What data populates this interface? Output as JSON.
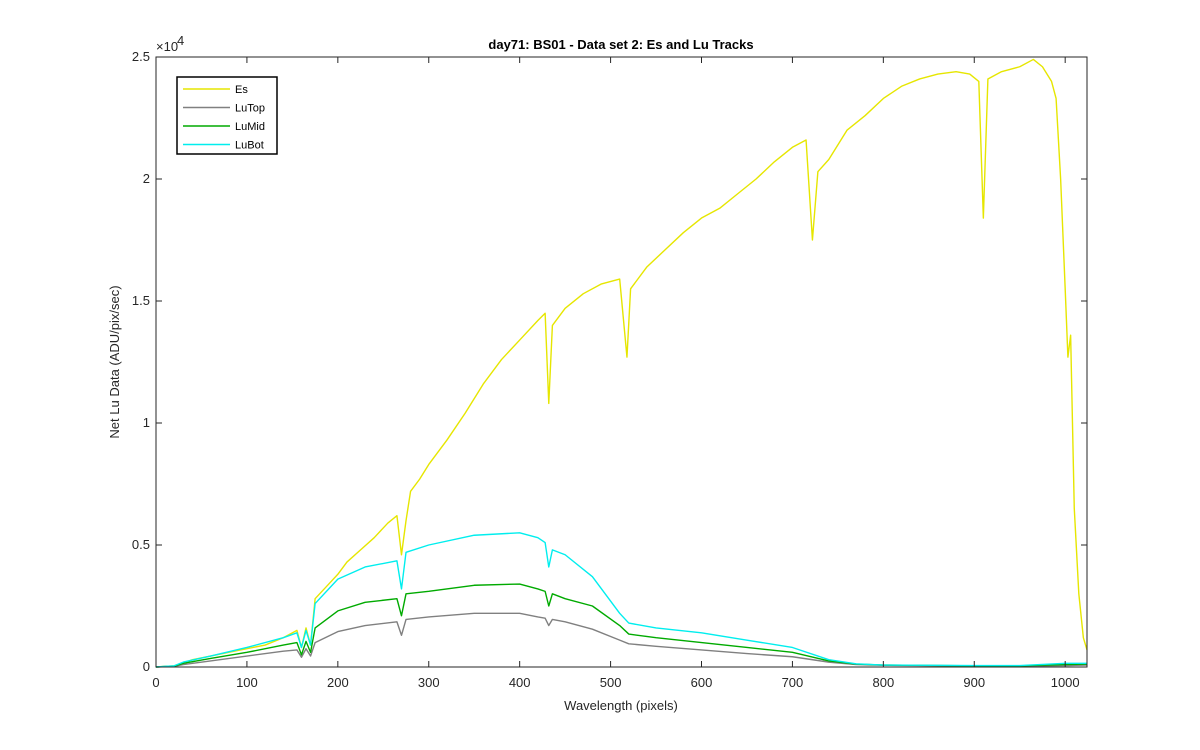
{
  "chart_data": {
    "type": "line",
    "title": "day71: BS01 - Data set 2: Es and Lu Tracks",
    "xlabel": "Wavelength (pixels)",
    "ylabel": "Net Lu Data (ADU/pix/sec)",
    "xlim": [
      0,
      1024
    ],
    "ylim": [
      0,
      25000
    ],
    "y_exponent_label": "×10",
    "y_exponent_power": "4",
    "x_ticks": [
      0,
      100,
      200,
      300,
      400,
      500,
      600,
      700,
      800,
      900,
      1000
    ],
    "x_tick_labels": [
      "0",
      "100",
      "200",
      "300",
      "400",
      "500",
      "600",
      "700",
      "800",
      "900",
      "1000"
    ],
    "y_ticks": [
      0,
      5000,
      10000,
      15000,
      20000,
      25000
    ],
    "y_tick_labels": [
      "0",
      "0.5",
      "1",
      "1.5",
      "2",
      "2.5"
    ],
    "grid": false,
    "legend_position": "top-left",
    "series": [
      {
        "name": "Es",
        "color": "#e6e600",
        "points": [
          [
            0,
            0
          ],
          [
            20,
            50
          ],
          [
            30,
            150
          ],
          [
            40,
            300
          ],
          [
            60,
            450
          ],
          [
            80,
            600
          ],
          [
            100,
            750
          ],
          [
            120,
            900
          ],
          [
            140,
            1200
          ],
          [
            155,
            1500
          ],
          [
            160,
            800
          ],
          [
            165,
            1600
          ],
          [
            170,
            900
          ],
          [
            175,
            2800
          ],
          [
            190,
            3400
          ],
          [
            200,
            3800
          ],
          [
            210,
            4300
          ],
          [
            225,
            4800
          ],
          [
            240,
            5300
          ],
          [
            255,
            5900
          ],
          [
            265,
            6200
          ],
          [
            270,
            4600
          ],
          [
            275,
            6000
          ],
          [
            280,
            7200
          ],
          [
            290,
            7700
          ],
          [
            300,
            8300
          ],
          [
            320,
            9300
          ],
          [
            340,
            10400
          ],
          [
            360,
            11600
          ],
          [
            380,
            12600
          ],
          [
            400,
            13400
          ],
          [
            420,
            14200
          ],
          [
            428,
            14500
          ],
          [
            432,
            10800
          ],
          [
            436,
            14000
          ],
          [
            450,
            14700
          ],
          [
            470,
            15300
          ],
          [
            490,
            15700
          ],
          [
            510,
            15900
          ],
          [
            518,
            12700
          ],
          [
            522,
            15500
          ],
          [
            540,
            16400
          ],
          [
            560,
            17100
          ],
          [
            580,
            17800
          ],
          [
            600,
            18400
          ],
          [
            620,
            18800
          ],
          [
            640,
            19400
          ],
          [
            660,
            20000
          ],
          [
            680,
            20700
          ],
          [
            700,
            21300
          ],
          [
            715,
            21600
          ],
          [
            722,
            17500
          ],
          [
            728,
            20300
          ],
          [
            740,
            20800
          ],
          [
            760,
            22000
          ],
          [
            780,
            22600
          ],
          [
            800,
            23300
          ],
          [
            820,
            23800
          ],
          [
            840,
            24100
          ],
          [
            860,
            24300
          ],
          [
            880,
            24400
          ],
          [
            895,
            24300
          ],
          [
            905,
            24000
          ],
          [
            910,
            18400
          ],
          [
            915,
            24100
          ],
          [
            930,
            24400
          ],
          [
            950,
            24600
          ],
          [
            965,
            24900
          ],
          [
            975,
            24600
          ],
          [
            985,
            24000
          ],
          [
            990,
            23300
          ],
          [
            995,
            20000
          ],
          [
            1000,
            15500
          ],
          [
            1003,
            12700
          ],
          [
            1006,
            13600
          ],
          [
            1010,
            6500
          ],
          [
            1015,
            3000
          ],
          [
            1020,
            1200
          ],
          [
            1024,
            700
          ]
        ]
      },
      {
        "name": "LuTop",
        "color": "#808080",
        "points": [
          [
            0,
            0
          ],
          [
            20,
            30
          ],
          [
            30,
            100
          ],
          [
            60,
            250
          ],
          [
            100,
            450
          ],
          [
            140,
            650
          ],
          [
            155,
            700
          ],
          [
            160,
            400
          ],
          [
            165,
            750
          ],
          [
            170,
            450
          ],
          [
            175,
            1000
          ],
          [
            200,
            1450
          ],
          [
            230,
            1700
          ],
          [
            265,
            1850
          ],
          [
            270,
            1300
          ],
          [
            275,
            1950
          ],
          [
            300,
            2050
          ],
          [
            350,
            2200
          ],
          [
            400,
            2200
          ],
          [
            420,
            2050
          ],
          [
            428,
            2000
          ],
          [
            432,
            1700
          ],
          [
            436,
            1950
          ],
          [
            450,
            1850
          ],
          [
            480,
            1550
          ],
          [
            510,
            1100
          ],
          [
            520,
            950
          ],
          [
            550,
            850
          ],
          [
            600,
            700
          ],
          [
            650,
            550
          ],
          [
            700,
            420
          ],
          [
            740,
            200
          ],
          [
            770,
            100
          ],
          [
            800,
            70
          ],
          [
            900,
            40
          ],
          [
            950,
            40
          ],
          [
            1000,
            60
          ],
          [
            1024,
            80
          ]
        ]
      },
      {
        "name": "LuMid",
        "color": "#00aa00",
        "points": [
          [
            0,
            0
          ],
          [
            20,
            40
          ],
          [
            30,
            150
          ],
          [
            60,
            350
          ],
          [
            100,
            600
          ],
          [
            140,
            900
          ],
          [
            155,
            1000
          ],
          [
            160,
            500
          ],
          [
            165,
            1050
          ],
          [
            170,
            600
          ],
          [
            175,
            1600
          ],
          [
            200,
            2300
          ],
          [
            230,
            2650
          ],
          [
            265,
            2800
          ],
          [
            270,
            2100
          ],
          [
            275,
            3000
          ],
          [
            300,
            3100
          ],
          [
            350,
            3350
          ],
          [
            400,
            3400
          ],
          [
            420,
            3200
          ],
          [
            428,
            3100
          ],
          [
            432,
            2500
          ],
          [
            436,
            3000
          ],
          [
            450,
            2800
          ],
          [
            480,
            2500
          ],
          [
            510,
            1700
          ],
          [
            520,
            1350
          ],
          [
            550,
            1200
          ],
          [
            600,
            1000
          ],
          [
            650,
            800
          ],
          [
            700,
            600
          ],
          [
            740,
            250
          ],
          [
            770,
            120
          ],
          [
            800,
            80
          ],
          [
            900,
            50
          ],
          [
            950,
            50
          ],
          [
            1000,
            100
          ],
          [
            1024,
            120
          ]
        ]
      },
      {
        "name": "LuBot",
        "color": "#00eeee",
        "points": [
          [
            0,
            0
          ],
          [
            20,
            50
          ],
          [
            30,
            200
          ],
          [
            60,
            450
          ],
          [
            100,
            800
          ],
          [
            140,
            1200
          ],
          [
            155,
            1400
          ],
          [
            160,
            800
          ],
          [
            165,
            1500
          ],
          [
            170,
            900
          ],
          [
            175,
            2600
          ],
          [
            200,
            3600
          ],
          [
            230,
            4100
          ],
          [
            265,
            4350
          ],
          [
            270,
            3200
          ],
          [
            275,
            4700
          ],
          [
            300,
            5000
          ],
          [
            350,
            5400
          ],
          [
            400,
            5500
          ],
          [
            420,
            5300
          ],
          [
            428,
            5100
          ],
          [
            432,
            4100
          ],
          [
            436,
            4800
          ],
          [
            450,
            4600
          ],
          [
            480,
            3700
          ],
          [
            510,
            2200
          ],
          [
            520,
            1800
          ],
          [
            550,
            1600
          ],
          [
            600,
            1400
          ],
          [
            650,
            1100
          ],
          [
            700,
            800
          ],
          [
            740,
            300
          ],
          [
            770,
            130
          ],
          [
            800,
            80
          ],
          [
            900,
            60
          ],
          [
            950,
            60
          ],
          [
            1000,
            150
          ],
          [
            1024,
            150
          ]
        ]
      }
    ]
  }
}
